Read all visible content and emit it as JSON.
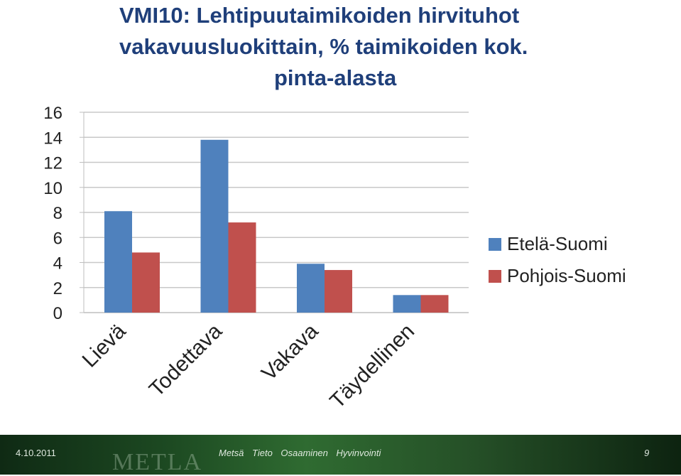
{
  "chart_data": {
    "type": "bar",
    "title_lines": [
      "VMI10: Lehtipuutaimikoiden hirvituhot",
      "vakavuusluokittain, % taimikoiden kok.",
      "pinta-alasta"
    ],
    "categories": [
      "Lievä",
      "Todettava",
      "Vakava",
      "Täydellinen"
    ],
    "series": [
      {
        "name": "Etelä-Suomi",
        "color": "#4f81bd",
        "values": [
          8.1,
          13.8,
          3.9,
          1.4
        ]
      },
      {
        "name": "Pohjois-Suomi",
        "color": "#c0504d",
        "values": [
          4.8,
          7.2,
          3.4,
          1.4
        ]
      }
    ],
    "ylim": [
      0,
      16
    ],
    "yticks": [
      0,
      2,
      4,
      6,
      8,
      10,
      12,
      14,
      16
    ],
    "grid": true,
    "legend": "right"
  },
  "footer": {
    "date": "4.10.2011",
    "logo_text": "METLA",
    "motto": "Metsä Tieto Osaaminen Hyvinvointi",
    "page": "9"
  }
}
